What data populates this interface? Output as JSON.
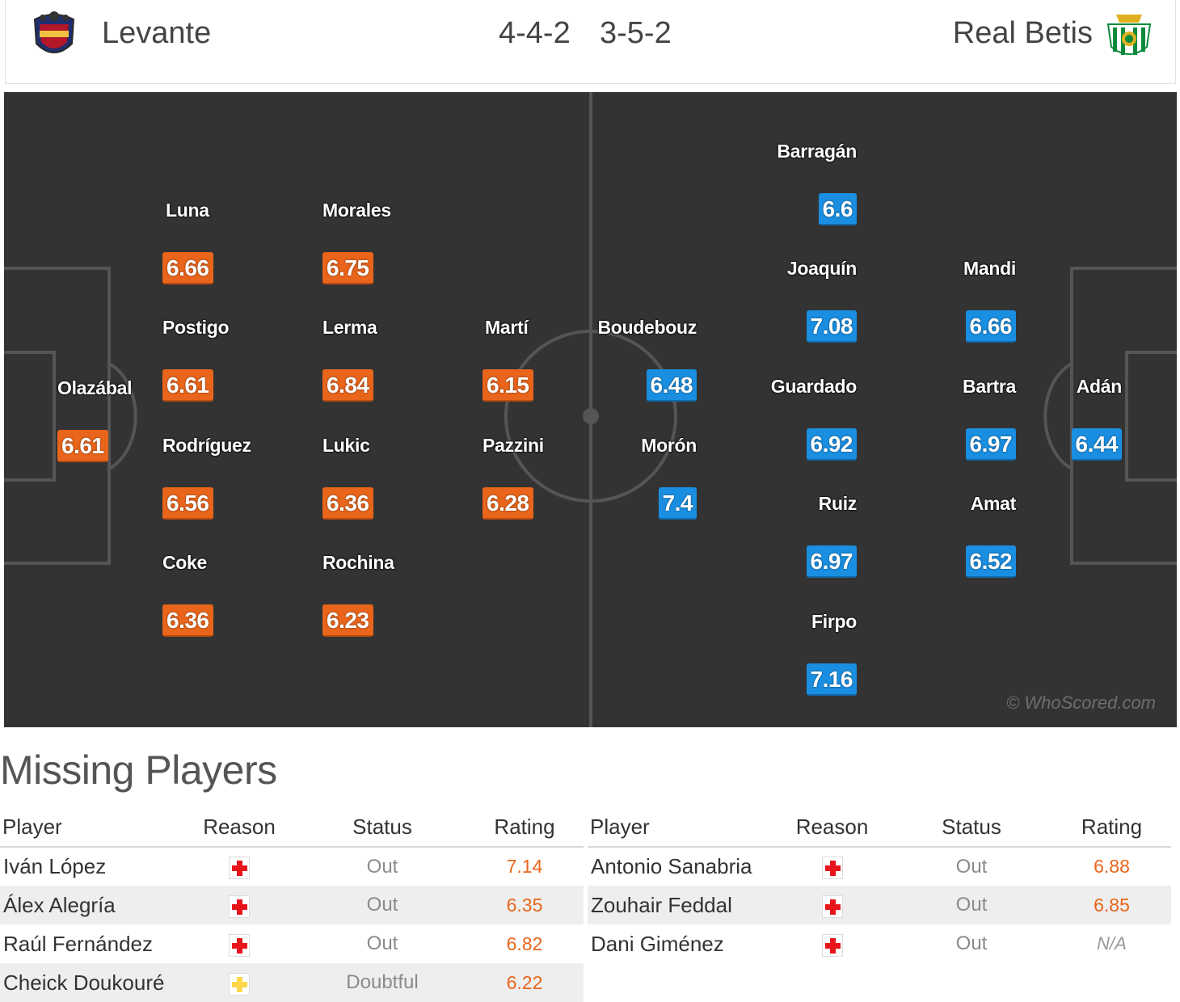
{
  "match": {
    "home": {
      "name": "Levante",
      "formation": "4-4-2",
      "color": "#e8651b",
      "crest_icon": "levante-crest-icon"
    },
    "away": {
      "name": "Real Betis",
      "formation": "3-5-2",
      "color": "#1a8ee0",
      "crest_icon": "betis-crest-icon"
    }
  },
  "pitch": {
    "watermark": "© WhoScored.com",
    "home_players": [
      {
        "name": "Olazábal",
        "rating": "6.61"
      },
      {
        "name": "Luna",
        "rating": "6.66"
      },
      {
        "name": "Postigo",
        "rating": "6.61"
      },
      {
        "name": "Rodríguez",
        "rating": "6.56"
      },
      {
        "name": "Coke",
        "rating": "6.36"
      },
      {
        "name": "Morales",
        "rating": "6.75"
      },
      {
        "name": "Lerma",
        "rating": "6.84"
      },
      {
        "name": "Lukic",
        "rating": "6.36"
      },
      {
        "name": "Rochina",
        "rating": "6.23"
      },
      {
        "name": "Martí",
        "rating": "6.15"
      },
      {
        "name": "Pazzini",
        "rating": "6.28"
      }
    ],
    "away_players": [
      {
        "name": "Boudebouz",
        "rating": "6.48"
      },
      {
        "name": "Morón",
        "rating": "7.4"
      },
      {
        "name": "Barragán",
        "rating": "6.6"
      },
      {
        "name": "Joaquín",
        "rating": "7.08"
      },
      {
        "name": "Guardado",
        "rating": "6.92"
      },
      {
        "name": "Ruiz",
        "rating": "6.97"
      },
      {
        "name": "Firpo",
        "rating": "7.16"
      },
      {
        "name": "Mandi",
        "rating": "6.66"
      },
      {
        "name": "Bartra",
        "rating": "6.97"
      },
      {
        "name": "Amat",
        "rating": "6.52"
      },
      {
        "name": "Adán",
        "rating": "6.44"
      }
    ]
  },
  "missing": {
    "title": "Missing Players",
    "columns": {
      "player": "Player",
      "reason": "Reason",
      "status": "Status",
      "rating": "Rating"
    },
    "home": [
      {
        "player": "Iván López",
        "reason_icon": "injury-icon",
        "reason_color": "#e8141b",
        "status": "Out",
        "rating": "7.14"
      },
      {
        "player": "Álex Alegría",
        "reason_icon": "injury-icon",
        "reason_color": "#e8141b",
        "status": "Out",
        "rating": "6.35"
      },
      {
        "player": "Raúl Fernández",
        "reason_icon": "injury-icon",
        "reason_color": "#e8141b",
        "status": "Out",
        "rating": "6.82"
      },
      {
        "player": "Cheick Doukouré",
        "reason_icon": "doubtful-icon",
        "reason_color": "#ffd84a",
        "status": "Doubtful",
        "rating": "6.22"
      }
    ],
    "away": [
      {
        "player": "Antonio Sanabria",
        "reason_icon": "injury-icon",
        "reason_color": "#e8141b",
        "status": "Out",
        "rating": "6.88"
      },
      {
        "player": "Zouhair Feddal",
        "reason_icon": "injury-icon",
        "reason_color": "#e8141b",
        "status": "Out",
        "rating": "6.85"
      },
      {
        "player": "Dani Giménez",
        "reason_icon": "injury-icon",
        "reason_color": "#e8141b",
        "status": "Out",
        "rating": "N/A"
      }
    ]
  }
}
